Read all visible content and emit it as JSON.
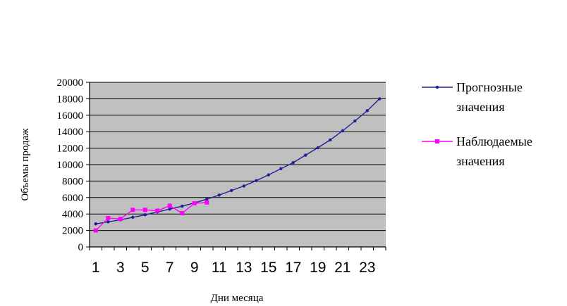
{
  "chart_data": {
    "type": "line",
    "title": "",
    "xlabel": "Дни месяца",
    "ylabel": "Объемы продаж",
    "x": [
      1,
      2,
      3,
      4,
      5,
      6,
      7,
      8,
      9,
      10,
      11,
      12,
      13,
      14,
      15,
      16,
      17,
      18,
      19,
      20,
      21,
      22,
      23,
      24
    ],
    "x_tick_labels": [
      "1",
      "3",
      "5",
      "7",
      "9",
      "11",
      "13",
      "15",
      "17",
      "19",
      "21",
      "23"
    ],
    "x_tick_values": [
      1,
      3,
      5,
      7,
      9,
      11,
      13,
      15,
      17,
      19,
      21,
      23
    ],
    "ylim": [
      0,
      20000
    ],
    "y_ticks": [
      0,
      2000,
      4000,
      6000,
      8000,
      10000,
      12000,
      14000,
      16000,
      18000,
      20000
    ],
    "y_tick_labels": [
      "0",
      "2000",
      "4000",
      "6000",
      "8000",
      "10000",
      "12000",
      "14000",
      "16000",
      "18000",
      "20000"
    ],
    "grid": "horizontal",
    "background_color": "#c0c0c0",
    "legend_position": "right",
    "series": [
      {
        "name": "Прогнозные значения",
        "name_lines": [
          "Прогнозные",
          "значения"
        ],
        "color": "#1f1f9a",
        "x": [
          1,
          2,
          3,
          4,
          5,
          6,
          7,
          8,
          9,
          10,
          11,
          12,
          13,
          14,
          15,
          16,
          17,
          18,
          19,
          20,
          21,
          22,
          23,
          24
        ],
        "values": [
          2800,
          3050,
          3300,
          3600,
          3900,
          4250,
          4600,
          4950,
          5350,
          5800,
          6300,
          6850,
          7400,
          8050,
          8750,
          9500,
          10250,
          11150,
          12050,
          13000,
          14100,
          15300,
          16550,
          18000
        ]
      },
      {
        "name": "Наблюдаемые значения",
        "name_lines": [
          "Наблюдаемые",
          "значения"
        ],
        "color": "#ff00ff",
        "x": [
          1,
          2,
          3,
          4,
          5,
          6,
          7,
          8,
          9,
          10
        ],
        "values": [
          2000,
          3500,
          3400,
          4500,
          4500,
          4400,
          5000,
          4100,
          5300,
          5400
        ]
      }
    ]
  }
}
